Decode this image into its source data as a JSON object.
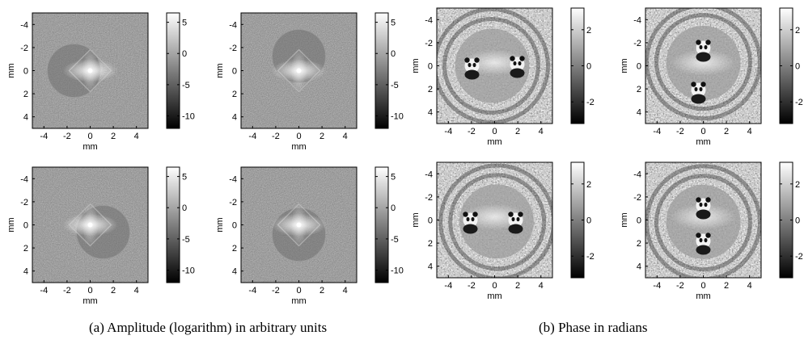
{
  "figure": {
    "captions": {
      "a": "(a)  Amplitude (logarithm) in arbitrary units",
      "b": "(b)  Phase in radians"
    },
    "axis_unit_label": "mm",
    "axis_ticks": [
      "-4",
      "-2",
      "0",
      "2",
      "4"
    ],
    "amplitude_colorbar_ticks": [
      "5",
      "0",
      "-5",
      "-10"
    ],
    "phase_colorbar_ticks": [
      "2",
      "0",
      "-2"
    ],
    "colormap": "gray",
    "panels": [
      {
        "group": "amplitude",
        "row": 1,
        "col": 1
      },
      {
        "group": "amplitude",
        "row": 1,
        "col": 2
      },
      {
        "group": "amplitude",
        "row": 2,
        "col": 1
      },
      {
        "group": "amplitude",
        "row": 2,
        "col": 2
      },
      {
        "group": "phase",
        "row": 1,
        "col": 1
      },
      {
        "group": "phase",
        "row": 1,
        "col": 2
      },
      {
        "group": "phase",
        "row": 2,
        "col": 1
      },
      {
        "group": "phase",
        "row": 2,
        "col": 2
      }
    ],
    "colors": {
      "amplitude_background": "#5a5a5a",
      "phase_noise_dark": "#1a1a1a",
      "phase_noise_light": "#d8d8d8"
    }
  }
}
